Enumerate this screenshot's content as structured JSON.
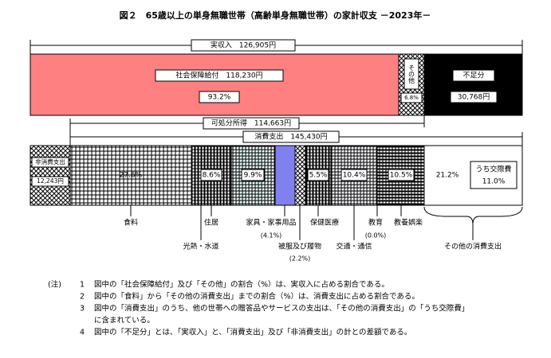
{
  "title": "図２　65歳以上の単身無職世帯（高齢単身無職世帯）の家計収支 －2023年－",
  "income": {
    "label": "実収入　126,905円",
    "social_security": {
      "label": "社会保障給付　118,230円",
      "share": "93.2%"
    },
    "other": {
      "label": "その他",
      "share": "6.8%"
    },
    "deficit": {
      "label": "不足分",
      "amount": "30,768円"
    }
  },
  "disposable": "可処分所得　114,663円",
  "consumption": "消費支出　145,430円",
  "expense": {
    "non_consumption": {
      "label": "非消費支出",
      "amount": "12,243円"
    },
    "food": {
      "share": "27.6%",
      "label": "食料"
    },
    "housing": {
      "share": "8.6%",
      "label": "住居"
    },
    "utilities": {
      "share": "9.9%",
      "label": "光熱・水道"
    },
    "furniture": {
      "label": "家具・家事用品",
      "share": "(4.1%)"
    },
    "clothing": {
      "label": "被服及び履物",
      "share": "(2.2%)"
    },
    "medical": {
      "share": "5.5%",
      "label": "保健医療"
    },
    "transport": {
      "share": "10.4%",
      "label": "交通・通信"
    },
    "education": {
      "label": "教育",
      "share": "(0.0%)"
    },
    "recreation": {
      "share": "10.5%",
      "label": "教養娯楽"
    },
    "other": {
      "share": "21.2%",
      "label": "その他の消費支出",
      "sub_label": "うち交際費",
      "sub_share": "11.0%"
    }
  },
  "notes": {
    "marker": "(注)",
    "items": [
      {
        "number": "1",
        "lines": [
          "図中の「社会保障給付」及び「その他」の割合（%）は、実収入に占める割合である。"
        ]
      },
      {
        "number": "2",
        "lines": [
          "図中の「食料」から「その他の消費支出」までの割合（%）は、消費支出に占める割合である。"
        ]
      },
      {
        "number": "3",
        "lines": [
          "図中の「消費支出」のうち、他の世帯への贈答品やサービスの支出は、「その他の消費支出」の「うち交際費」",
          "に含まれている。"
        ]
      },
      {
        "number": "4",
        "lines": [
          "図中の「不足分」とは、「実収入」と、「消費支出」及び「非消費支出」の計との差額である。"
        ]
      }
    ]
  }
}
